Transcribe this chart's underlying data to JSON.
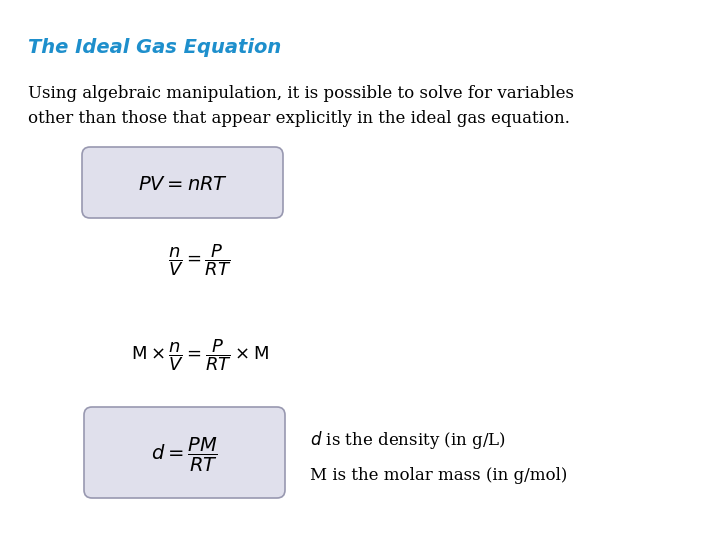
{
  "title": "The Ideal Gas Equation",
  "title_color": "#1E8FCC",
  "title_fontsize": 14,
  "body_text": "Using algebraic manipulation, it is possible to solve for variables\nother than those that appear explicitly in the ideal gas equation.",
  "body_fontsize": 12,
  "eq1": "$PV = nRT$",
  "eq2": "$\\dfrac{n}{V} = \\dfrac{P}{RT}$",
  "eq3": "$\\mathrm{M} \\times\\dfrac{n}{V} = \\dfrac{P}{RT} \\times \\mathrm{M}$",
  "eq4": "$d = \\dfrac{PM}{RT}$",
  "note1": "$d$ is the density (in g/L)",
  "note2": "M is the molar mass (in g/mol)",
  "bg_color": "#ffffff",
  "box_facecolor": "#E0E0EC",
  "box_edgecolor": "#9898B0",
  "text_color": "#000000"
}
